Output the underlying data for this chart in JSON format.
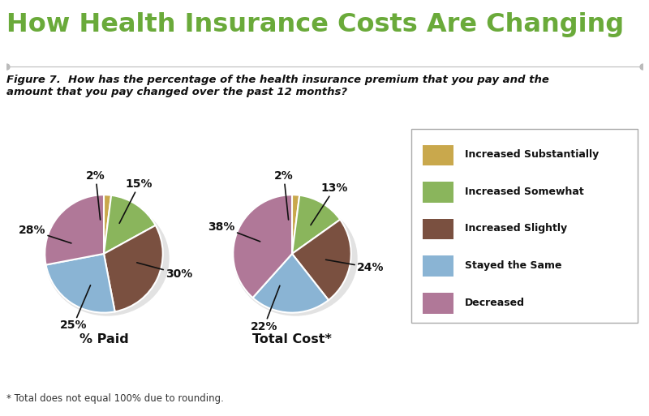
{
  "title": "How Health Insurance Costs Are Changing",
  "title_color": "#6aaa3a",
  "subtitle": "Figure 7.  How has the percentage of the health insurance premium that you pay and the\namount that you pay changed over the past 12 months?",
  "footnote": "* Total does not equal 100% due to rounding.",
  "bg_color": "#ffffff",
  "colors": [
    "#c9a84c",
    "#8ab55c",
    "#7a5040",
    "#8ab4d4",
    "#b07898"
  ],
  "pie1_values": [
    2,
    15,
    30,
    25,
    28
  ],
  "pie1_labels": [
    "2%",
    "15%",
    "30%",
    "25%",
    "28%"
  ],
  "pie1_label_angles_deg": [
    96,
    63,
    345,
    247,
    162
  ],
  "pie1_label_r": [
    1.32,
    1.32,
    1.32,
    1.32,
    1.28
  ],
  "pie1_arrow_r": [
    0.58,
    0.58,
    0.58,
    0.58,
    0.58
  ],
  "pie1_title": "% Paid",
  "pie2_values": [
    2,
    13,
    24,
    22,
    38
  ],
  "pie2_labels": [
    "2%",
    "13%",
    "24%",
    "22%",
    "38%"
  ],
  "pie2_label_angles_deg": [
    96,
    57,
    350,
    249,
    159
  ],
  "pie2_label_r": [
    1.32,
    1.32,
    1.35,
    1.32,
    1.28
  ],
  "pie2_arrow_r": [
    0.58,
    0.58,
    0.58,
    0.58,
    0.58
  ],
  "pie2_title": "Total Cost*",
  "legend_labels": [
    "Increased Substantially",
    "Increased Somewhat",
    "Increased Slightly",
    "Stayed the Same",
    "Decreased"
  ],
  "shadow_color": "#cccccc"
}
